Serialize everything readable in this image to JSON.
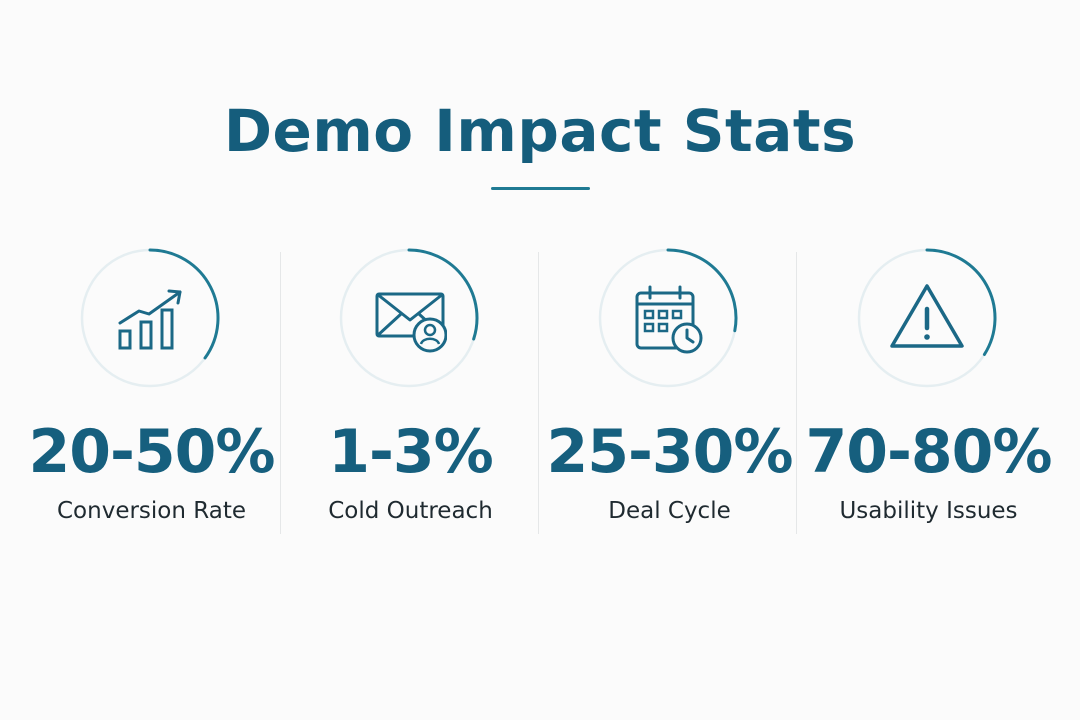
{
  "page": {
    "title": "Demo Impact Stats",
    "accent_color": "#155d7c",
    "ring_track_color": "#e5eef1"
  },
  "stats": [
    {
      "value": "20-50%",
      "label": "Conversion Rate",
      "icon": "growth-chart-icon",
      "ring_progress": 0.35
    },
    {
      "value": "1-3%",
      "label": "Cold Outreach",
      "icon": "envelope-user-icon",
      "ring_progress": 0.3
    },
    {
      "value": "25-30%",
      "label": "Deal Cycle",
      "icon": "calendar-clock-icon",
      "ring_progress": 0.28
    },
    {
      "value": "70-80%",
      "label": "Usability Issues",
      "icon": "warning-triangle-icon",
      "ring_progress": 0.34
    }
  ]
}
